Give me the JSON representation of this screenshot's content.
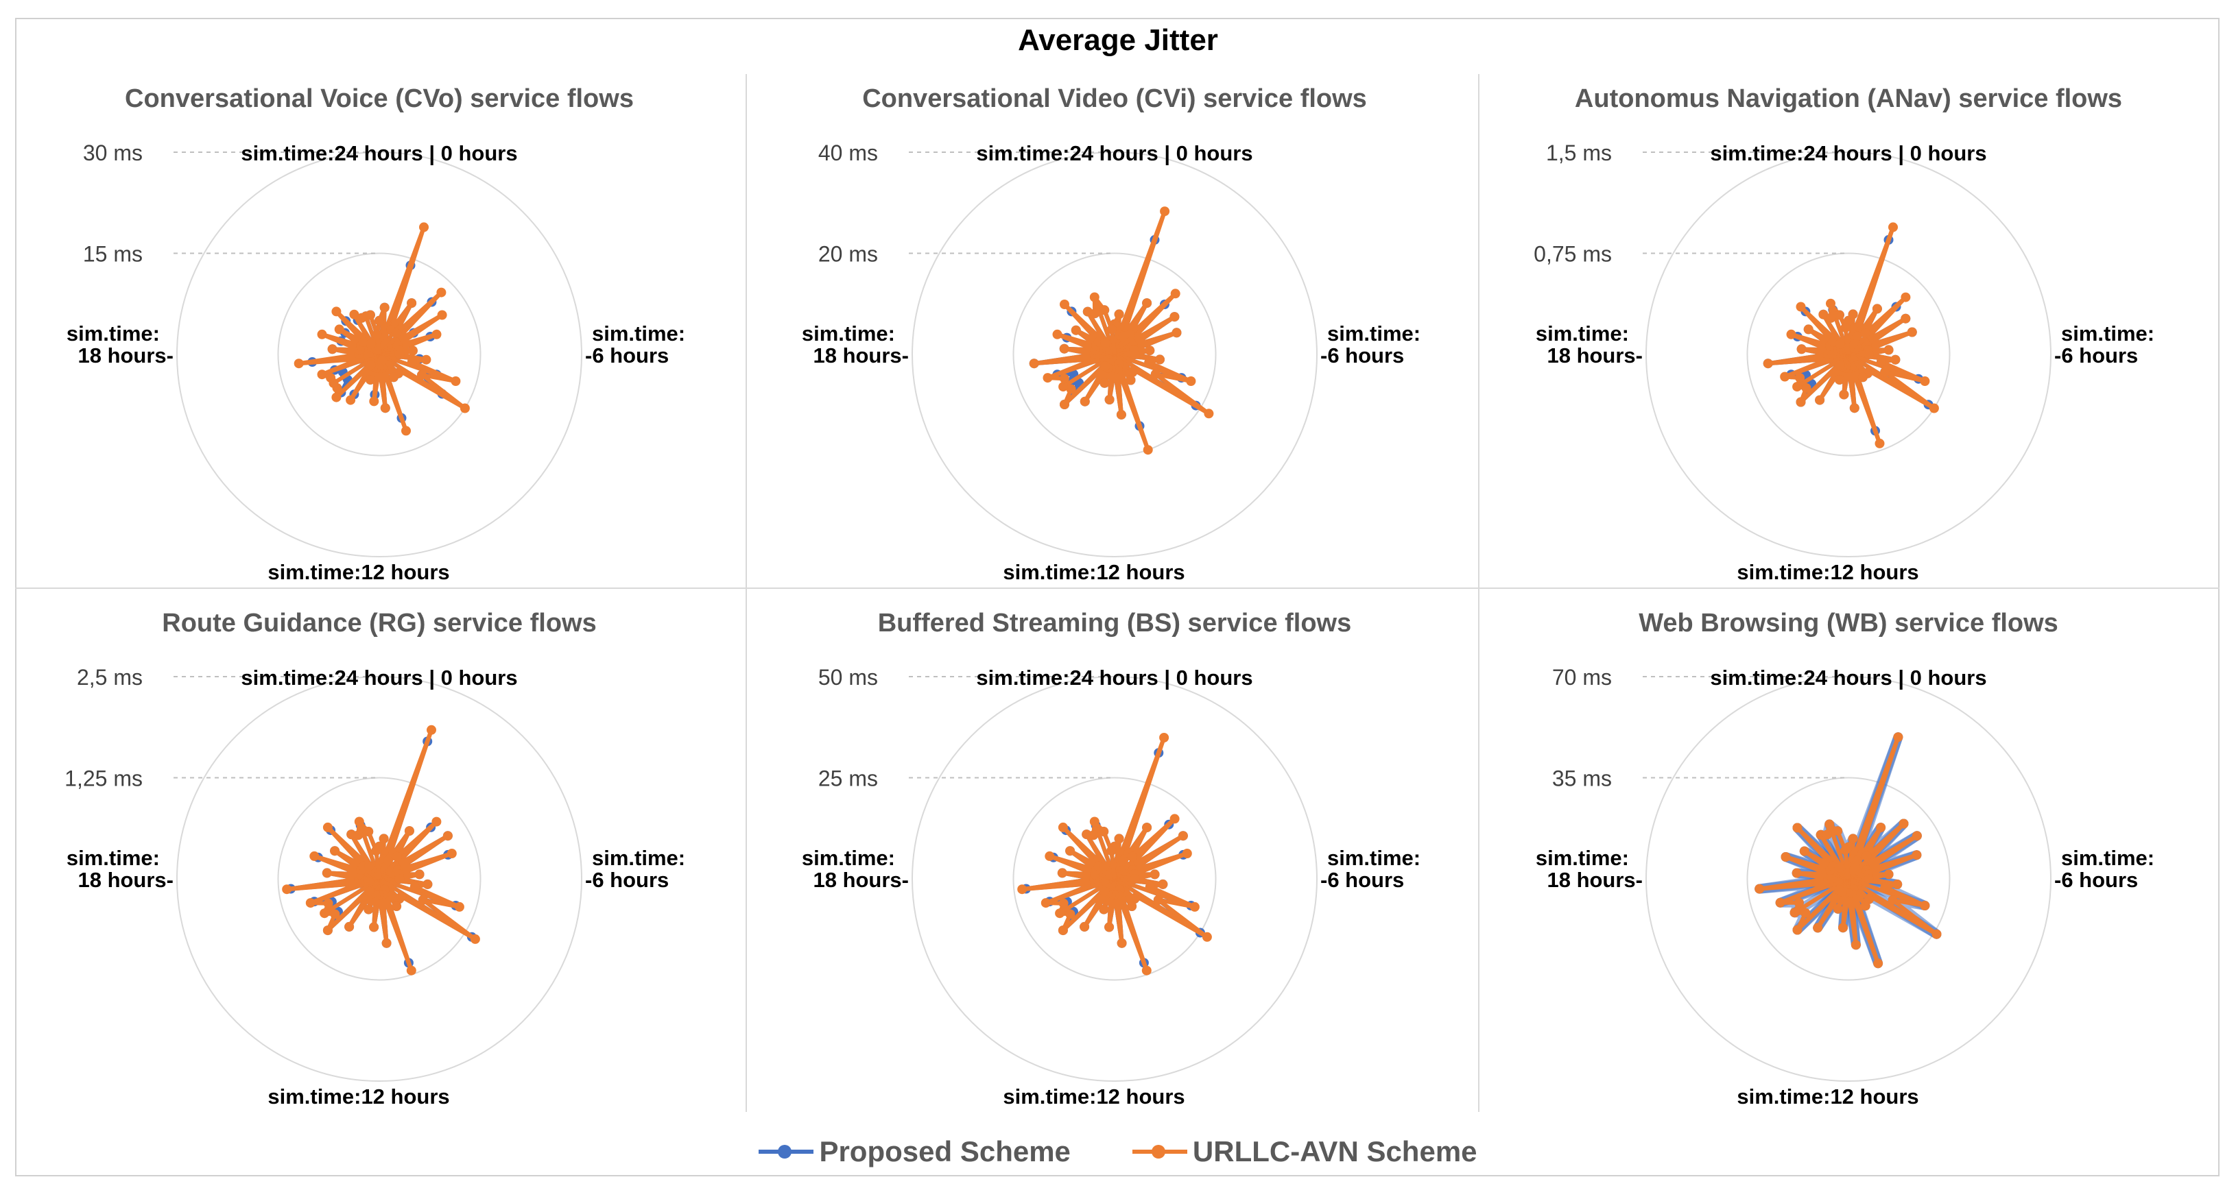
{
  "figure_title": "Average Jitter",
  "legend": [
    {
      "name": "Proposed Scheme",
      "color": "#4472C4"
    },
    {
      "name": "URLLC-AVN Scheme",
      "color": "#ED7D31"
    }
  ],
  "axis_labels": {
    "top": "sim.time:24 hours | 0 hours",
    "right_1": "sim.time:",
    "right_2": "-6 hours",
    "left_1": "sim.time:",
    "left_2": "18 hours-",
    "bottom": "sim.time:12 hours"
  },
  "chart_data": [
    {
      "type": "radar",
      "title": "Conversational Voice (CVo) service flows",
      "rmax": 30,
      "rticks": [
        "30 ms",
        "15 ms"
      ],
      "series": [
        {
          "name": "Proposed Scheme",
          "values": [
            5,
            7,
            3,
            14,
            4,
            9,
            4,
            11,
            3,
            6,
            3,
            8,
            3,
            5,
            3,
            6,
            5,
            9,
            7,
            11,
            4,
            4,
            2,
            4,
            1,
            10,
            2,
            8,
            2,
            6,
            2,
            4,
            2,
            7,
            2,
            8,
            6,
            6,
            6,
            7,
            3,
            10,
            3,
            7,
            3,
            6,
            3,
            6,
            3,
            7,
            2,
            6,
            6,
            6,
            6,
            3
          ]
        },
        {
          "name": "URLLC-AVN Scheme",
          "values": [
            5,
            7,
            3,
            20,
            4,
            9,
            4,
            13,
            3,
            11,
            3,
            9,
            3,
            5,
            3,
            7,
            5,
            12,
            7,
            15,
            4,
            4,
            2,
            4,
            1,
            12,
            2,
            8,
            2,
            7,
            2,
            4,
            2,
            8,
            2,
            9,
            8,
            8,
            8,
            9,
            3,
            12,
            3,
            7,
            3,
            9,
            3,
            7,
            3,
            9,
            2,
            7,
            6,
            6,
            6,
            3
          ]
        }
      ]
    },
    {
      "type": "radar",
      "title": "Conversational Video (CVi) service flows",
      "rmax": 40,
      "rticks": [
        "40 ms",
        "20 ms"
      ],
      "series": [
        {
          "name": "Proposed Scheme",
          "values": [
            6,
            8,
            4,
            24,
            4,
            12,
            5,
            14,
            4,
            14,
            4,
            13,
            4,
            7,
            4,
            9,
            7,
            14,
            9,
            19,
            5,
            5,
            3,
            6,
            2,
            15,
            3,
            12,
            3,
            9,
            3,
            6,
            3,
            11,
            3,
            14,
            9,
            10,
            9,
            12,
            4,
            16,
            4,
            10,
            4,
            10,
            4,
            9,
            4,
            12,
            3,
            10,
            9,
            10,
            9,
            5
          ]
        },
        {
          "name": "URLLC-AVN Scheme",
          "values": [
            6,
            8,
            4,
            30,
            4,
            12,
            5,
            17,
            4,
            14,
            4,
            13,
            4,
            7,
            4,
            9,
            7,
            16,
            9,
            22,
            5,
            5,
            3,
            6,
            2,
            20,
            3,
            12,
            3,
            9,
            3,
            6,
            3,
            11,
            3,
            14,
            11,
            12,
            11,
            14,
            4,
            16,
            4,
            10,
            4,
            12,
            4,
            9,
            4,
            14,
            3,
            10,
            9,
            12,
            9,
            5
          ]
        }
      ]
    },
    {
      "type": "radar",
      "title": "Autonomus Navigation (ANav) service flows",
      "rmax": 1.5,
      "rticks": [
        "1,5 ms",
        "0,75 ms"
      ],
      "series": [
        {
          "name": "Proposed Scheme",
          "values": [
            0.25,
            0.3,
            0.15,
            0.9,
            0.15,
            0.4,
            0.2,
            0.5,
            0.15,
            0.5,
            0.15,
            0.5,
            0.15,
            0.3,
            0.15,
            0.35,
            0.25,
            0.55,
            0.3,
            0.7,
            0.2,
            0.2,
            0.1,
            0.2,
            0.1,
            0.6,
            0.1,
            0.4,
            0.1,
            0.3,
            0.1,
            0.2,
            0.1,
            0.4,
            0.1,
            0.5,
            0.35,
            0.4,
            0.35,
            0.45,
            0.15,
            0.6,
            0.15,
            0.35,
            0.15,
            0.4,
            0.15,
            0.35,
            0.15,
            0.45,
            0.1,
            0.35,
            0.3,
            0.35,
            0.3,
            0.2
          ]
        },
        {
          "name": "URLLC-AVN Scheme",
          "values": [
            0.25,
            0.3,
            0.15,
            1.0,
            0.15,
            0.4,
            0.2,
            0.6,
            0.15,
            0.5,
            0.15,
            0.5,
            0.15,
            0.3,
            0.15,
            0.35,
            0.25,
            0.6,
            0.3,
            0.75,
            0.2,
            0.2,
            0.1,
            0.2,
            0.1,
            0.7,
            0.1,
            0.4,
            0.1,
            0.3,
            0.1,
            0.2,
            0.1,
            0.4,
            0.1,
            0.5,
            0.4,
            0.45,
            0.4,
            0.5,
            0.15,
            0.6,
            0.15,
            0.35,
            0.15,
            0.45,
            0.15,
            0.35,
            0.15,
            0.5,
            0.1,
            0.35,
            0.3,
            0.4,
            0.3,
            0.2
          ]
        }
      ]
    },
    {
      "type": "radar",
      "title": "Route Guidance (RG) service flows",
      "rmax": 2.5,
      "rticks": [
        "2,5 ms",
        "1,25 ms"
      ],
      "series": [
        {
          "name": "Proposed Scheme",
          "values": [
            0.4,
            0.5,
            0.25,
            1.8,
            0.25,
            0.7,
            0.35,
            0.9,
            0.25,
            1.0,
            0.25,
            0.9,
            0.25,
            0.5,
            0.25,
            0.6,
            0.45,
            1.0,
            0.6,
            1.35,
            0.35,
            0.35,
            0.2,
            0.4,
            0.15,
            1.1,
            0.2,
            0.8,
            0.2,
            0.6,
            0.2,
            0.4,
            0.2,
            0.7,
            0.2,
            0.9,
            0.65,
            0.75,
            0.65,
            0.85,
            0.25,
            1.1,
            0.25,
            0.65,
            0.25,
            0.8,
            0.25,
            0.65,
            0.25,
            0.85,
            0.2,
            0.65,
            0.6,
            0.7,
            0.6,
            0.35
          ]
        },
        {
          "name": "URLLC-AVN Scheme",
          "values": [
            0.4,
            0.5,
            0.25,
            1.95,
            0.25,
            0.7,
            0.35,
            1.0,
            0.25,
            1.0,
            0.25,
            0.95,
            0.25,
            0.5,
            0.25,
            0.6,
            0.45,
            1.05,
            0.6,
            1.4,
            0.35,
            0.35,
            0.2,
            0.4,
            0.15,
            1.2,
            0.2,
            0.8,
            0.2,
            0.6,
            0.2,
            0.4,
            0.2,
            0.7,
            0.2,
            0.9,
            0.7,
            0.8,
            0.7,
            0.9,
            0.25,
            1.15,
            0.25,
            0.65,
            0.25,
            0.85,
            0.25,
            0.65,
            0.25,
            0.9,
            0.2,
            0.65,
            0.6,
            0.75,
            0.6,
            0.35
          ]
        }
      ]
    },
    {
      "type": "radar",
      "title": "Buffered Streaming (BS) service flows",
      "rmax": 50,
      "rticks": [
        "50 ms",
        "25 ms"
      ],
      "series": [
        {
          "name": "Proposed Scheme",
          "values": [
            8,
            10,
            5,
            33,
            5,
            15,
            7,
            19,
            5,
            20,
            5,
            18,
            5,
            10,
            5,
            12,
            9,
            20,
            12,
            25,
            7,
            7,
            4,
            8,
            3,
            22,
            4,
            16,
            4,
            12,
            4,
            8,
            4,
            14,
            4,
            18,
            13,
            15,
            13,
            17,
            5,
            22,
            5,
            13,
            5,
            16,
            5,
            13,
            5,
            17,
            4,
            13,
            12,
            14,
            12,
            7
          ]
        },
        {
          "name": "URLLC-AVN Scheme",
          "values": [
            8,
            10,
            5,
            37,
            5,
            15,
            7,
            21,
            5,
            20,
            5,
            19,
            5,
            10,
            5,
            12,
            9,
            21,
            12,
            27,
            7,
            7,
            4,
            8,
            3,
            24,
            4,
            16,
            4,
            12,
            4,
            8,
            4,
            14,
            4,
            18,
            14,
            16,
            14,
            18,
            5,
            23,
            5,
            13,
            5,
            17,
            5,
            13,
            5,
            18,
            4,
            13,
            12,
            15,
            12,
            7
          ]
        }
      ]
    },
    {
      "type": "radar",
      "title": "Web Browsing (WB) service flows",
      "rmax": 70,
      "rticks": [
        "70 ms",
        "35 ms"
      ],
      "series": [
        {
          "name": "Proposed Scheme",
          "values": [
            11,
            14,
            7,
            52,
            7,
            21,
            10,
            27,
            7,
            28,
            7,
            25,
            7,
            14,
            7,
            17,
            13,
            28,
            17,
            36,
            10,
            10,
            5,
            11,
            4,
            31,
            5,
            23,
            5,
            17,
            5,
            11,
            5,
            20,
            5,
            25,
            19,
            22,
            19,
            25,
            7,
            31,
            7,
            18,
            7,
            23,
            7,
            18,
            7,
            25,
            5,
            18,
            17,
            20,
            17,
            10
          ]
        },
        {
          "name": "URLLC-AVN Scheme",
          "values": [
            11,
            14,
            7,
            52,
            7,
            21,
            10,
            27,
            7,
            28,
            7,
            25,
            7,
            14,
            7,
            17,
            13,
            28,
            17,
            36,
            10,
            10,
            5,
            11,
            4,
            31,
            5,
            23,
            5,
            17,
            5,
            11,
            5,
            20,
            5,
            25,
            19,
            22,
            19,
            25,
            7,
            31,
            7,
            18,
            7,
            23,
            7,
            18,
            7,
            25,
            5,
            18,
            17,
            20,
            17,
            10
          ]
        }
      ]
    }
  ]
}
